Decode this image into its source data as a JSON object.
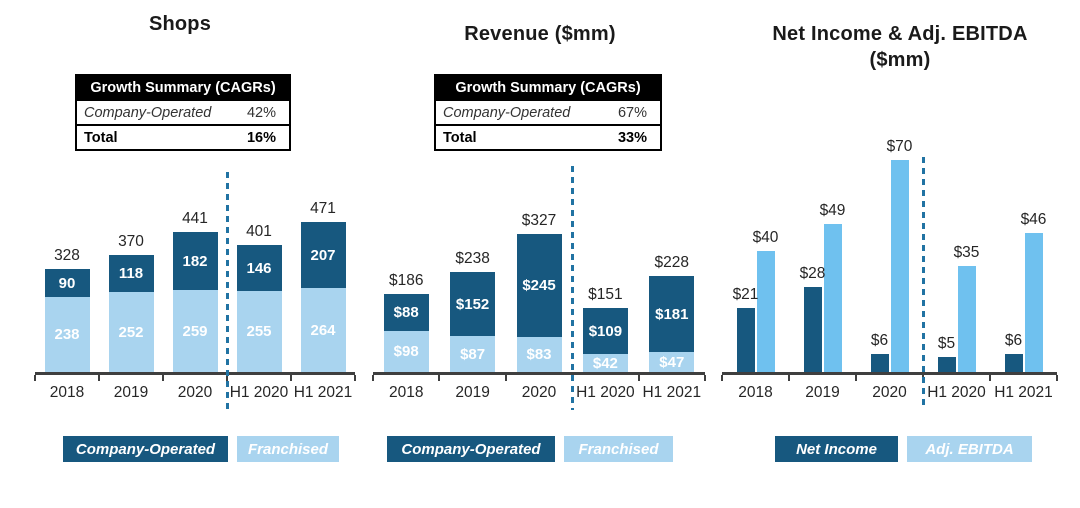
{
  "colors": {
    "dark_navy": "#17587F",
    "light_blue": "#A9D4EF",
    "sky_blue": "#6FC1EF",
    "divider_blue": "#2173A3",
    "axis_gray": "#3F3F3F",
    "table_header_bg": "#000000",
    "table_header_text": "#FFFFFF",
    "bar_label_white": "#FFFFFF",
    "text_dark": "#262626"
  },
  "chart_data": [
    {
      "id": "shops",
      "type": "bar",
      "variant": "stacked",
      "title": "Shops",
      "summary_table": {
        "header": "Growth Summary (CAGRs)",
        "rows": [
          {
            "label": "Company-Operated",
            "value": "42%"
          },
          {
            "label": "Total",
            "value": "16%"
          }
        ]
      },
      "categories": [
        "2018",
        "2019",
        "2020",
        "H1 2020",
        "H1 2021"
      ],
      "series": [
        {
          "name": "Company-Operated",
          "color_key": "dark_navy",
          "values": [
            90,
            118,
            182,
            146,
            207
          ],
          "labels": [
            "90",
            "118",
            "182",
            "146",
            "207"
          ]
        },
        {
          "name": "Franchised",
          "color_key": "light_blue",
          "values": [
            238,
            252,
            259,
            255,
            264
          ],
          "labels": [
            "238",
            "252",
            "259",
            "255",
            "264"
          ]
        }
      ],
      "totals": [
        328,
        370,
        441,
        401,
        471
      ],
      "total_labels": [
        "328",
        "370",
        "441",
        "401",
        "471"
      ],
      "ylim": [
        0,
        471
      ],
      "grid": false,
      "divider_after_category": "2020",
      "legend_position": "bottom",
      "legend": [
        {
          "label": "Company-Operated",
          "color_key": "dark_navy"
        },
        {
          "label": "Franchised",
          "color_key": "light_blue"
        }
      ]
    },
    {
      "id": "revenue",
      "type": "bar",
      "variant": "stacked",
      "title": "Revenue ($mm)",
      "summary_table": {
        "header": "Growth Summary (CAGRs)",
        "rows": [
          {
            "label": "Company-Operated",
            "value": "67%"
          },
          {
            "label": "Total",
            "value": "33%"
          }
        ]
      },
      "categories": [
        "2018",
        "2019",
        "2020",
        "H1 2020",
        "H1 2021"
      ],
      "series": [
        {
          "name": "Company-Operated",
          "color_key": "dark_navy",
          "values": [
            88,
            152,
            245,
            109,
            181
          ],
          "labels": [
            "$88",
            "$152",
            "$245",
            "$109",
            "$181"
          ]
        },
        {
          "name": "Franchised",
          "color_key": "light_blue",
          "values": [
            98,
            87,
            83,
            42,
            47
          ],
          "labels": [
            "$98",
            "$87",
            "$83",
            "$42",
            "$47"
          ]
        }
      ],
      "totals": [
        186,
        238,
        327,
        151,
        228
      ],
      "total_labels": [
        "$186",
        "$238",
        "$327",
        "$151",
        "$228"
      ],
      "ylim": [
        0,
        327
      ],
      "grid": false,
      "divider_after_category": "2020",
      "legend_position": "bottom",
      "legend": [
        {
          "label": "Company-Operated",
          "color_key": "dark_navy"
        },
        {
          "label": "Franchised",
          "color_key": "light_blue"
        }
      ]
    },
    {
      "id": "net-income-ebitda",
      "type": "bar",
      "variant": "grouped",
      "title": "Net Income & Adj. EBITDA ($mm)",
      "categories": [
        "2018",
        "2019",
        "2020",
        "H1 2020",
        "H1 2021"
      ],
      "series": [
        {
          "name": "Net Income",
          "color_key": "dark_navy",
          "values": [
            21,
            28,
            6,
            5,
            6
          ],
          "labels": [
            "$21",
            "$28",
            "$6",
            "$5",
            "$6"
          ]
        },
        {
          "name": "Adj. EBITDA",
          "color_key": "sky_blue",
          "values": [
            40,
            49,
            70,
            35,
            46
          ],
          "labels": [
            "$40",
            "$49",
            "$70",
            "$35",
            "$46"
          ]
        }
      ],
      "ylim": [
        0,
        70
      ],
      "grid": false,
      "divider_after_category": "2020",
      "legend_position": "bottom",
      "legend": [
        {
          "label": "Net Income",
          "color_key": "dark_navy"
        },
        {
          "label": "Adj. EBITDA",
          "color_key": "light_blue"
        }
      ]
    }
  ]
}
